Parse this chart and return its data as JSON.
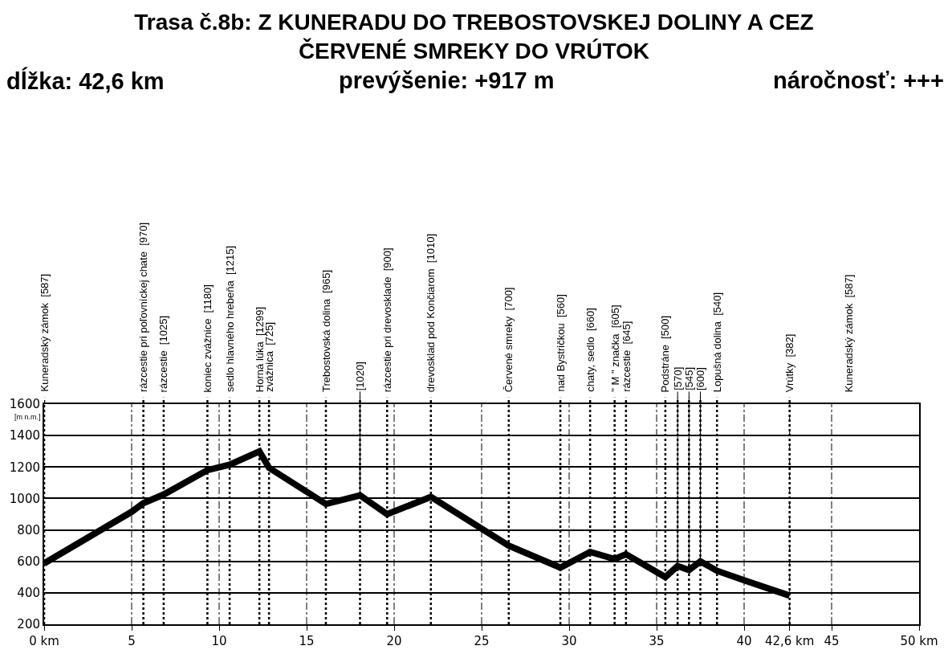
{
  "chart_data": {
    "type": "line",
    "title": "Trasa č.8b: Z KUNERADU DO TREBOSTOVSKEJ DOLINY A CEZ ČERVENÉ SMREKY DO VRÚTOK",
    "ylabel": "[m n.m.]",
    "annotations": [
      "dĺžka: 42,6 km",
      "prevýšenie: +917 m",
      "náročnosť: +++",
      "Kuneradský zámok  [587]",
      {
        "text": "[1020]",
        "x": 18.05,
        "y": 1020
      },
      {
        "text": "[570]",
        "x": 36.2,
        "y": 570
      },
      {
        "text": "[545]",
        "x": 36.85,
        "y": 545
      },
      {
        "text": "[600]",
        "x": 37.5,
        "y": 600
      }
    ],
    "x": [
      0,
      5,
      5.67,
      6.83,
      9.33,
      10.6,
      12.3,
      12.85,
      16.1,
      18.05,
      19.6,
      22.1,
      26.55,
      29.5,
      31.2,
      32.6,
      33.25,
      35.5,
      36.2,
      36.85,
      37.5,
      38.45,
      40,
      42.6
    ],
    "series": [
      {
        "color": "#000000",
        "values": [
          587,
          915,
          970,
          1025,
          1180,
          1215,
          1299,
          1195,
          965,
          1020,
          900,
          1010,
          700,
          560,
          660,
          615,
          645,
          500,
          570,
          545,
          600,
          540,
          480,
          382
        ]
      }
    ],
    "xlim": [
      0,
      50
    ],
    "ylim": [
      200,
      1600
    ],
    "xticks": [
      {
        "value": 0,
        "label": "0 km"
      },
      5,
      10,
      15,
      20,
      25,
      30,
      35,
      40,
      {
        "value": 42.6,
        "label": "42,6 km"
      },
      45,
      {
        "value": 50,
        "label": "50 km"
      }
    ],
    "yticks": [
      200,
      400,
      600,
      800,
      1000,
      1200,
      1400,
      1600
    ],
    "grid": true,
    "marker": "none",
    "line_style": "solid",
    "ref_lines": [
      {
        "axis": "x",
        "value": 0,
        "label": "Kuneradský zámok  [587]",
        "line_style": "dotted"
      },
      {
        "axis": "x",
        "value": 5.67,
        "label": "rázcestie pri poľovníckej chate  [970]",
        "line_style": "dotted"
      },
      {
        "axis": "x",
        "value": 6.83,
        "label": "rázcestie  [1025]",
        "line_style": "dotted"
      },
      {
        "axis": "x",
        "value": 9.33,
        "label": "koniec zvážnice  [1180]",
        "line_style": "dotted"
      },
      {
        "axis": "x",
        "value": 10.6,
        "label": "sedlo hlavného hrebeňa  [1215]",
        "line_style": "dotted"
      },
      {
        "axis": "x",
        "value": 12.3,
        "label": "Horná lúka  [1299]",
        "line_style": "dotted"
      },
      {
        "axis": "x",
        "value": 12.85,
        "label": "zvážnica  [725]",
        "line_style": "dotted"
      },
      {
        "axis": "x",
        "value": 16.1,
        "label": "Trebostovská dolina  [965]",
        "line_style": "dotted"
      },
      {
        "axis": "x",
        "value": 18.05,
        "line_style": "dotted"
      },
      {
        "axis": "x",
        "value": 19.6,
        "label": "rázcestie pri drevosklade  [900]",
        "line_style": "dotted"
      },
      {
        "axis": "x",
        "value": 22.1,
        "label": "drevosklad pod Končiarom  [1010]",
        "line_style": "dotted"
      },
      {
        "axis": "x",
        "value": 26.55,
        "label": "Červené smreky  [700]",
        "line_style": "dotted"
      },
      {
        "axis": "x",
        "value": 29.5,
        "label": "nad Bystričkou  [560]",
        "line_style": "dotted"
      },
      {
        "axis": "x",
        "value": 31.2,
        "label": "chaty, sedlo  [660]",
        "line_style": "dotted"
      },
      {
        "axis": "x",
        "value": 32.6,
        "label": "\" M \" značka  [605]",
        "line_style": "dotted"
      },
      {
        "axis": "x",
        "value": 33.25,
        "label": "rázcestie  [645]",
        "line_style": "dotted"
      },
      {
        "axis": "x",
        "value": 35.5,
        "label": "Podstráne  [500]",
        "line_style": "dotted"
      },
      {
        "axis": "x",
        "value": 36.2,
        "line_style": "dotted"
      },
      {
        "axis": "x",
        "value": 36.85,
        "line_style": "dotted"
      },
      {
        "axis": "x",
        "value": 37.5,
        "line_style": "dotted"
      },
      {
        "axis": "x",
        "value": 38.45,
        "label": "Lopušná dolina  [540]",
        "line_style": "dotted"
      },
      {
        "axis": "x",
        "value": 42.6,
        "label": "Vrútky  [382]",
        "line_style": "dotted"
      }
    ]
  }
}
